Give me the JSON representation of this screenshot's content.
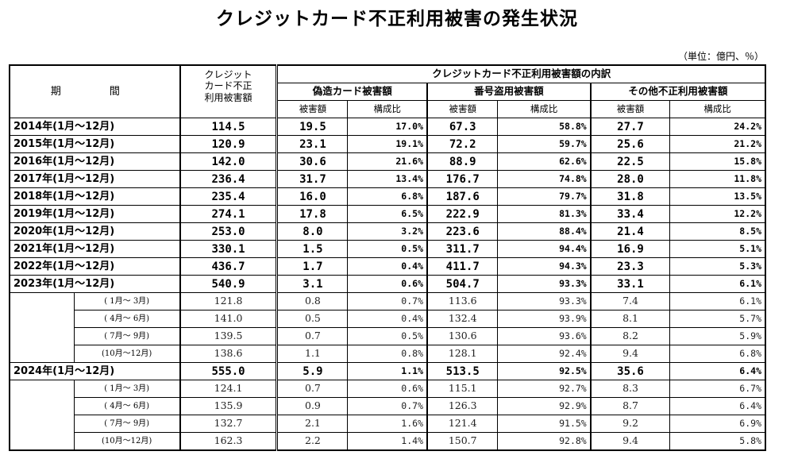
{
  "title": "クレジットカード不正利用被害の発生状況",
  "unit": "（単位：億円、％）",
  "headers": {
    "period": "期　間",
    "total_l1": "クレジット",
    "total_l2": "カード不正",
    "total_l3": "利用被害額",
    "breakdown": "クレジットカード不正利用被害額の内訳",
    "forged": "偽造カード被害額",
    "number_theft": "番号盗用被害額",
    "other": "その他不正利用被害額",
    "amount": "被害額",
    "ratio": "構成比"
  },
  "years": [
    {
      "period": "2014年(1月～12月)",
      "total": "114.5",
      "forged": "19.5",
      "forged_pct": "17.0%",
      "theft": "67.3",
      "theft_pct": "58.8%",
      "other": "27.7",
      "other_pct": "24.2%"
    },
    {
      "period": "2015年(1月～12月)",
      "total": "120.9",
      "forged": "23.1",
      "forged_pct": "19.1%",
      "theft": "72.2",
      "theft_pct": "59.7%",
      "other": "25.6",
      "other_pct": "21.2%"
    },
    {
      "period": "2016年(1月～12月)",
      "total": "142.0",
      "forged": "30.6",
      "forged_pct": "21.6%",
      "theft": "88.9",
      "theft_pct": "62.6%",
      "other": "22.5",
      "other_pct": "15.8%"
    },
    {
      "period": "2017年(1月～12月)",
      "total": "236.4",
      "forged": "31.7",
      "forged_pct": "13.4%",
      "theft": "176.7",
      "theft_pct": "74.8%",
      "other": "28.0",
      "other_pct": "11.8%"
    },
    {
      "period": "2018年(1月～12月)",
      "total": "235.4",
      "forged": "16.0",
      "forged_pct": "6.8%",
      "theft": "187.6",
      "theft_pct": "79.7%",
      "other": "31.8",
      "other_pct": "13.5%"
    },
    {
      "period": "2019年(1月～12月)",
      "total": "274.1",
      "forged": "17.8",
      "forged_pct": "6.5%",
      "theft": "222.9",
      "theft_pct": "81.3%",
      "other": "33.4",
      "other_pct": "12.2%"
    },
    {
      "period": "2020年(1月～12月)",
      "total": "253.0",
      "forged": "8.0",
      "forged_pct": "3.2%",
      "theft": "223.6",
      "theft_pct": "88.4%",
      "other": "21.4",
      "other_pct": "8.5%"
    },
    {
      "period": "2021年(1月～12月)",
      "total": "330.1",
      "forged": "1.5",
      "forged_pct": "0.5%",
      "theft": "311.7",
      "theft_pct": "94.4%",
      "other": "16.9",
      "other_pct": "5.1%"
    },
    {
      "period": "2022年(1月～12月)",
      "total": "436.7",
      "forged": "1.7",
      "forged_pct": "0.4%",
      "theft": "411.7",
      "theft_pct": "94.3%",
      "other": "23.3",
      "other_pct": "5.3%"
    }
  ],
  "year2023": {
    "period": "2023年(1月～12月)",
    "total": "540.9",
    "forged": "3.1",
    "forged_pct": "0.6%",
    "theft": "504.7",
    "theft_pct": "93.3%",
    "other": "33.1",
    "other_pct": "6.1%"
  },
  "q2023": [
    {
      "label": "( 1月～ 3月)",
      "total": "121.8",
      "forged": "0.8",
      "forged_pct": "0.7%",
      "theft": "113.6",
      "theft_pct": "93.3%",
      "other": "7.4",
      "other_pct": "6.1%"
    },
    {
      "label": "( 4月～ 6月)",
      "total": "141.0",
      "forged": "0.5",
      "forged_pct": "0.4%",
      "theft": "132.4",
      "theft_pct": "93.9%",
      "other": "8.1",
      "other_pct": "5.7%"
    },
    {
      "label": "( 7月～ 9月)",
      "total": "139.5",
      "forged": "0.7",
      "forged_pct": "0.5%",
      "theft": "130.6",
      "theft_pct": "93.6%",
      "other": "8.2",
      "other_pct": "5.9%"
    },
    {
      "label": "(10月～12月)",
      "total": "138.6",
      "forged": "1.1",
      "forged_pct": "0.8%",
      "theft": "128.1",
      "theft_pct": "92.4%",
      "other": "9.4",
      "other_pct": "6.8%"
    }
  ],
  "year2024": {
    "period": "2024年(1月～12月)",
    "total": "555.0",
    "forged": "5.9",
    "forged_pct": "1.1%",
    "theft": "513.5",
    "theft_pct": "92.5%",
    "other": "35.6",
    "other_pct": "6.4%"
  },
  "q2024": [
    {
      "label": "( 1月～ 3月)",
      "total": "124.1",
      "forged": "0.7",
      "forged_pct": "0.6%",
      "theft": "115.1",
      "theft_pct": "92.7%",
      "other": "8.3",
      "other_pct": "6.7%"
    },
    {
      "label": "( 4月～ 6月)",
      "total": "135.9",
      "forged": "0.9",
      "forged_pct": "0.7%",
      "theft": "126.3",
      "theft_pct": "92.9%",
      "other": "8.7",
      "other_pct": "6.4%"
    },
    {
      "label": "( 7月～ 9月)",
      "total": "132.7",
      "forged": "2.1",
      "forged_pct": "1.6%",
      "theft": "121.4",
      "theft_pct": "91.5%",
      "other": "9.2",
      "other_pct": "6.9%"
    },
    {
      "label": "(10月～12月)",
      "total": "162.3",
      "forged": "2.2",
      "forged_pct": "1.4%",
      "theft": "150.7",
      "theft_pct": "92.8%",
      "other": "9.4",
      "other_pct": "5.8%"
    }
  ]
}
